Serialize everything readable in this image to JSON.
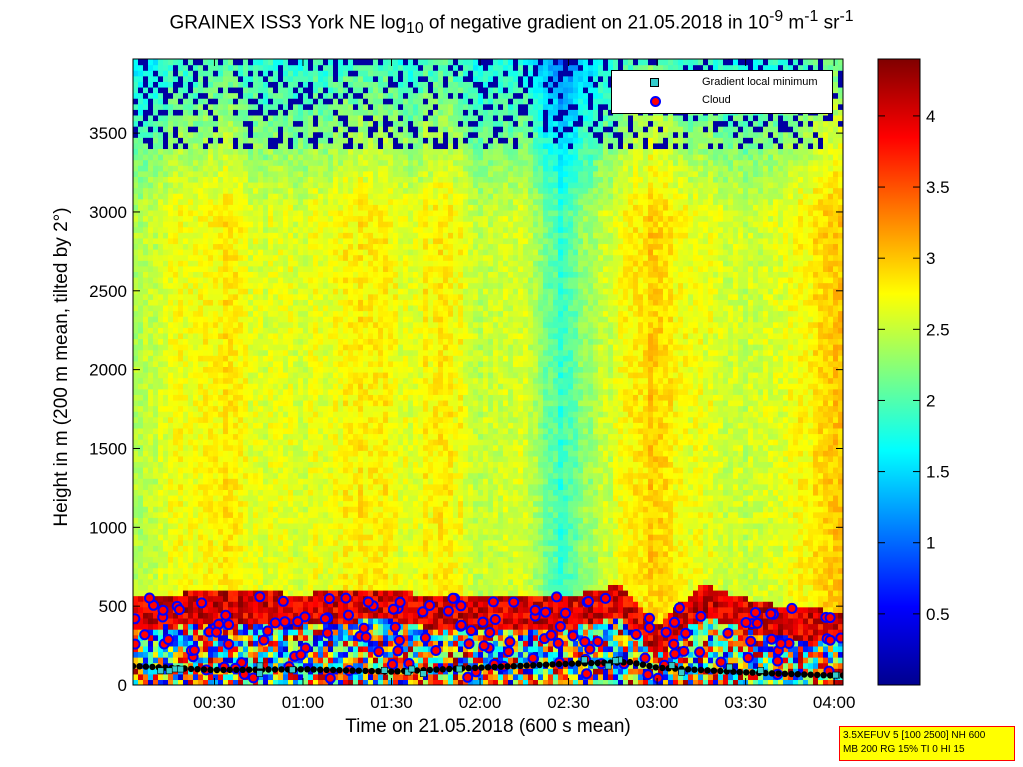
{
  "chart_data": {
    "type": "heatmap",
    "title": "GRAINEX ISS3 York NE log10 of negative gradient on 21.05.2018 in 10-9 m-1 sr-1",
    "title_parts": {
      "main": "GRAINEX ISS3 York NE log",
      "sub1": "10",
      "mid": " of negative gradient on 21.05.2018 in 10",
      "sup1": "-9",
      "unit1": " m",
      "sup2": "-1",
      "unit2": " sr",
      "sup3": "-1"
    },
    "xlabel": "Time on 21.05.2018 (600 s mean)",
    "ylabel": "Height in m (200 m mean, tilted by 2°)",
    "x_ticks": [
      "00:30",
      "01:00",
      "01:30",
      "02:00",
      "02:30",
      "03:00",
      "03:30",
      "04:00"
    ],
    "x_tick_hours": [
      0.5,
      1.0,
      1.5,
      2.0,
      2.5,
      3.0,
      3.5,
      4.0
    ],
    "xlim_hours": [
      0.04,
      4.05
    ],
    "y_ticks": [
      0,
      500,
      1000,
      1500,
      2000,
      2500,
      3000,
      3500
    ],
    "ylim": [
      0,
      3970
    ],
    "colorbar": {
      "ticks": [
        0.5,
        1,
        1.5,
        2,
        2.5,
        3,
        3.5,
        4
      ],
      "tick_labels": [
        "0.5",
        "1",
        "1.5",
        "2",
        "2.5",
        "3",
        "3.5",
        "4"
      ],
      "range": [
        0,
        4.4
      ],
      "colormap": "jet"
    },
    "grid": false,
    "legend_position": "top-right",
    "legend": [
      {
        "name": "Gradient local minimum",
        "marker": "cyan square",
        "color": "#33cccc"
      },
      {
        "name": "Cloud",
        "marker": "red circle, blue edge",
        "color": "#ff0000"
      }
    ],
    "column_mean_log_gradient": [
      [
        0.1,
        2.4
      ],
      [
        0.3,
        2.7
      ],
      [
        0.55,
        2.8
      ],
      [
        0.8,
        2.6
      ],
      [
        1.0,
        2.6
      ],
      [
        1.35,
        2.85
      ],
      [
        1.6,
        2.65
      ],
      [
        1.8,
        2.85
      ],
      [
        2.05,
        2.45
      ],
      [
        2.25,
        2.6
      ],
      [
        2.45,
        1.9
      ],
      [
        2.65,
        2.4
      ],
      [
        2.95,
        2.95
      ],
      [
        3.2,
        2.7
      ],
      [
        3.5,
        2.5
      ],
      [
        3.75,
        2.7
      ],
      [
        4.0,
        2.95
      ]
    ],
    "boundary_layer_top_m": [
      [
        0.05,
        560
      ],
      [
        0.5,
        600
      ],
      [
        1.0,
        580
      ],
      [
        1.45,
        620
      ],
      [
        1.75,
        560
      ],
      [
        2.0,
        560
      ],
      [
        2.5,
        560
      ],
      [
        2.8,
        640
      ],
      [
        3.0,
        380
      ],
      [
        3.25,
        640
      ],
      [
        3.6,
        520
      ],
      [
        4.0,
        470
      ]
    ],
    "gradient_local_minimum_m": [
      [
        0.05,
        120
      ],
      [
        0.5,
        95
      ],
      [
        1.0,
        100
      ],
      [
        1.5,
        85
      ],
      [
        2.0,
        110
      ],
      [
        2.5,
        135
      ],
      [
        2.85,
        145
      ],
      [
        3.0,
        110
      ],
      [
        3.5,
        80
      ],
      [
        4.0,
        60
      ]
    ],
    "cloud_height_range_m": [
      40,
      560
    ]
  },
  "info_box": {
    "line1": "3.5XEFUV 5 [100 2500] NH 600",
    "line2": "MB 200 RG 15% TI 0 HI 15"
  },
  "colors": {
    "background": "#ffffff",
    "legend_square": "#33cccc",
    "cloud_fill": "#ff0000",
    "cloud_edge": "#0000ff",
    "info_box_bg": "#ffff00",
    "info_box_border": "#ff0000"
  }
}
